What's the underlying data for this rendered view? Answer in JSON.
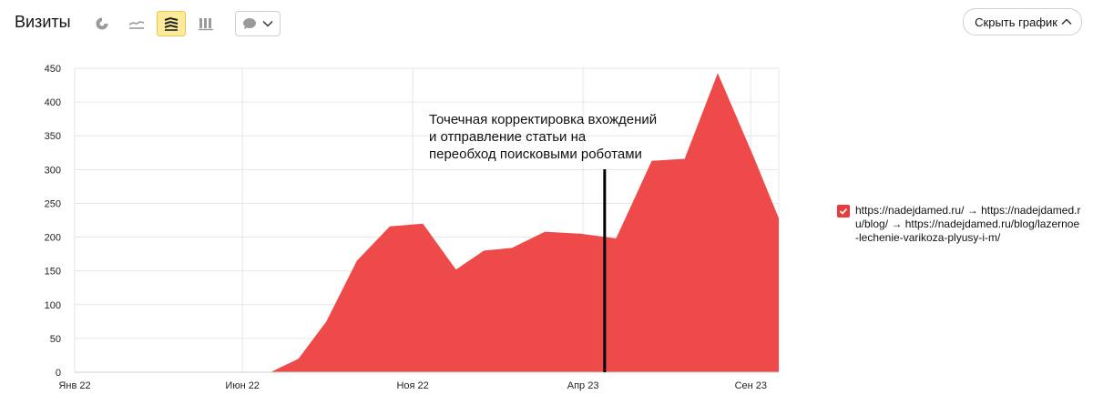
{
  "header": {
    "title": "Визиты",
    "hide_chart_label": "Скрыть график"
  },
  "toolbar": {
    "buttons": [
      {
        "icon": "pie-chart-icon",
        "active": false
      },
      {
        "icon": "line-chart-icon",
        "active": false
      },
      {
        "icon": "area-chart-icon",
        "active": true
      },
      {
        "icon": "bar-chart-icon",
        "active": false
      }
    ],
    "comments_icon": "comment-icon"
  },
  "legend": {
    "checked": true,
    "label": "https://nadejdamed.ru/ → https://nadejdamed.ru/blog/ → https://nadejdamed.ru/blog/lazernoe-lechenie-varikoza-plyusy-i-m/"
  },
  "annotation": {
    "lines": [
      "Точечная корректировка вхождений",
      "и отправление статьи на",
      "переобход поисковыми роботами"
    ],
    "x": 20.85
  },
  "chart_data": {
    "type": "area",
    "title": "",
    "xlabel": "",
    "ylabel": "",
    "ylim": [
      0,
      450
    ],
    "yticks": [
      0,
      50,
      100,
      150,
      200,
      250,
      300,
      350,
      400,
      450
    ],
    "xlim": [
      0,
      27.7
    ],
    "xtick_labels": [
      {
        "label": "Янв 22",
        "x": 0
      },
      {
        "label": "Июн 22",
        "x": 6.6
      },
      {
        "label": "Ноя 22",
        "x": 13.3
      },
      {
        "label": "Апр 23",
        "x": 20
      },
      {
        "label": "Сен 23",
        "x": 26.6
      }
    ],
    "grid": true,
    "color": "#ee4a4a",
    "series": [
      {
        "name": "https://nadejdamed.ru/ → https://nadejdamed.ru/blog/ → https://nadejdamed.ru/blog/lazernoe-lechenie-varikoza-plyusy-i-m/",
        "x": [
          0,
          7.7,
          8.8,
          9.9,
          11.1,
          12.4,
          13.7,
          15,
          16.1,
          17.2,
          18.5,
          19.9,
          21.3,
          22.7,
          24,
          25.3,
          26.7,
          27.7
        ],
        "values": [
          0,
          0,
          20,
          75,
          165,
          216,
          220,
          152,
          180,
          184,
          208,
          205,
          198,
          313,
          316,
          443,
          320,
          228
        ]
      }
    ]
  }
}
